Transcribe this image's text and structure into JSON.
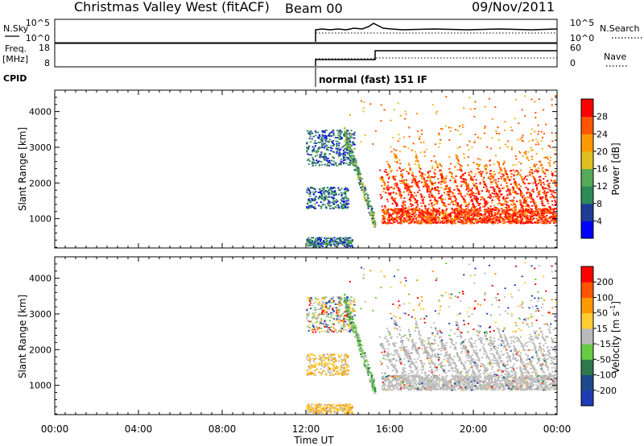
{
  "header": {
    "station": "Christmas Valley West (fitACF)",
    "beam": "Beam 00",
    "date": "09/Nov/2011"
  },
  "status": {
    "nsky_label": "N.Sky",
    "nsky_ticks": [
      "10^5",
      "10^0"
    ],
    "nsearch_label": "N.Search",
    "nsearch_ticks": [
      "10^5",
      "10^0"
    ],
    "freq_label": "Freq.",
    "freq_unit": "[MHz]",
    "freq_ticks": [
      "18",
      "8"
    ],
    "nave_label": "Nave",
    "nave_ticks": [
      "60",
      "0"
    ],
    "cpid_label": "CPID",
    "cpid_text": "normal (fast) 151 IF"
  },
  "colors": {
    "power": [
      "#0000ff",
      "#1e3c96",
      "#2e8b57",
      "#55aa55",
      "#e0c020",
      "#ff9900",
      "#ff5500",
      "#ff0000"
    ],
    "velocity": [
      "#1e3cb4",
      "#1e4a8c",
      "#2e7a4a",
      "#66cc44",
      "#bbbbbb",
      "#ffcc33",
      "#ff9900",
      "#ff5500",
      "#ff0000"
    ]
  },
  "chart_data": [
    {
      "type": "heatmap",
      "title": "",
      "xlabel": "",
      "ylabel": "Slant Range [km]",
      "yticks": [
        "1000",
        "2000",
        "3000",
        "4000"
      ],
      "ylim": [
        180,
        4600
      ],
      "colorbar_label": "Power [dB]",
      "colorbar_ticks": [
        "4",
        "8",
        "12",
        "16",
        "20",
        "24",
        "28"
      ]
    },
    {
      "type": "heatmap",
      "title": "",
      "xlabel": "Time UT",
      "ylabel": "Slant Range [km]",
      "yticks": [
        "1000",
        "2000",
        "3000",
        "4000"
      ],
      "ylim": [
        180,
        4600
      ],
      "xticks": [
        "00:00",
        "04:00",
        "08:00",
        "12:00",
        "16:00",
        "20:00",
        "00:00"
      ],
      "colorbar_label": "Velocity [m s",
      "colorbar_unit_exp": "-1",
      "colorbar_ticks": [
        "200",
        "100",
        "50",
        "15",
        "-15",
        "-50",
        "-100",
        "-200"
      ]
    }
  ]
}
